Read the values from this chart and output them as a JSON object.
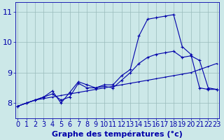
{
  "title": "Graphe des températures (°c)",
  "hours": [
    0,
    1,
    2,
    3,
    4,
    5,
    6,
    7,
    8,
    9,
    10,
    11,
    12,
    13,
    14,
    15,
    16,
    17,
    18,
    19,
    20,
    21,
    22,
    23
  ],
  "line1": [
    7.9,
    8.0,
    8.1,
    8.15,
    8.2,
    8.25,
    8.3,
    8.35,
    8.4,
    8.45,
    8.5,
    8.55,
    8.6,
    8.65,
    8.7,
    8.75,
    8.8,
    8.85,
    8.9,
    8.95,
    9.0,
    9.1,
    9.2,
    9.3
  ],
  "line2": [
    7.9,
    8.0,
    8.1,
    8.2,
    8.3,
    8.1,
    8.2,
    8.65,
    8.5,
    8.5,
    8.6,
    8.6,
    8.9,
    9.1,
    10.2,
    10.75,
    10.8,
    10.85,
    10.9,
    9.85,
    9.6,
    8.5,
    8.45,
    8.45
  ],
  "line3": [
    7.9,
    8.0,
    8.1,
    8.2,
    8.4,
    8.0,
    8.35,
    8.7,
    8.6,
    8.5,
    8.55,
    8.5,
    8.75,
    9.0,
    9.3,
    9.5,
    9.6,
    9.65,
    9.7,
    9.5,
    9.55,
    9.4,
    8.5,
    8.45
  ],
  "ylim": [
    7.5,
    11.3
  ],
  "yticks": [
    8,
    9,
    10,
    11
  ],
  "xlim": [
    -0.3,
    23.3
  ],
  "bg_color": "#cce8e8",
  "line_color": "#0000aa",
  "grid_color": "#99bbbb",
  "font_color": "#0000aa",
  "tick_fontsize": 7,
  "label_fontsize": 8
}
